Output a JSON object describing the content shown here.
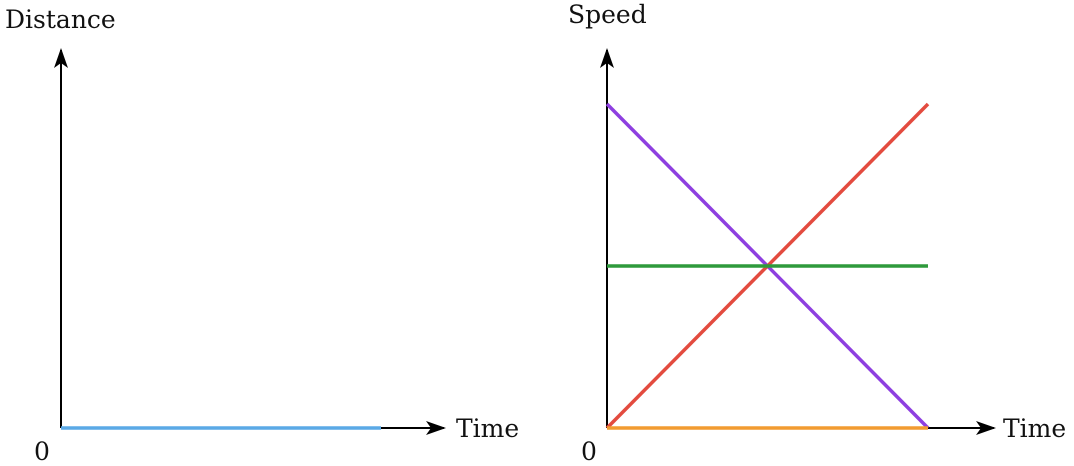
{
  "chart_data": [
    {
      "type": "line",
      "ylabel": "Distance",
      "xlabel": "Time",
      "origin_label": "0",
      "xlim": [
        0,
        1
      ],
      "ylim": [
        0,
        1
      ],
      "series": [
        {
          "color": "#5aa9e6",
          "x": [
            0,
            1
          ],
          "y": [
            0,
            0
          ]
        }
      ]
    },
    {
      "type": "line",
      "ylabel": "Speed",
      "xlabel": "Time",
      "origin_label": "0",
      "xlim": [
        0,
        1
      ],
      "ylim": [
        0,
        1
      ],
      "series": [
        {
          "color": "#8e3fe0",
          "x": [
            0,
            1
          ],
          "y": [
            1,
            0
          ]
        },
        {
          "color": "#e34b3f",
          "x": [
            0,
            1
          ],
          "y": [
            0,
            1
          ]
        },
        {
          "color": "#2e9a3c",
          "x": [
            0,
            1
          ],
          "y": [
            0.5,
            0.5
          ]
        },
        {
          "color": "#f29b30",
          "x": [
            0,
            1
          ],
          "y": [
            0,
            0
          ]
        }
      ]
    }
  ]
}
